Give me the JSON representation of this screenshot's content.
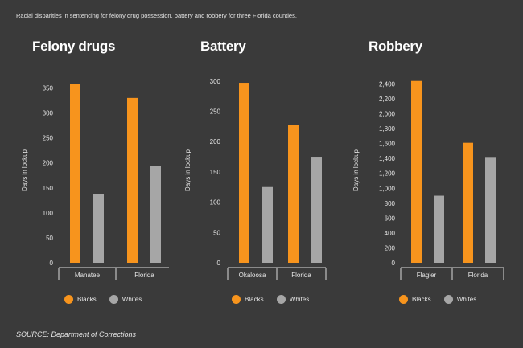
{
  "header": {
    "title": "Racial disparities in sentencing for felony drug possession, battery and robbery for three Florida counties."
  },
  "footer": {
    "source": "SOURCE: Department of Corrections"
  },
  "colors": {
    "blacks": "#f7941d",
    "whites": "#a6a6a6",
    "axis": "#d9d9d9",
    "text": "#e6e6e6"
  },
  "chart_data": [
    {
      "type": "bar",
      "title": "Felony drugs",
      "ylabel": "Days in lockup",
      "categories": [
        "Manatee",
        "Florida"
      ],
      "series": [
        {
          "name": "Blacks",
          "values": [
            358,
            330
          ]
        },
        {
          "name": "Whites",
          "values": [
            137,
            194
          ]
        }
      ],
      "ylim": [
        0,
        370
      ],
      "yticks": [
        0,
        50,
        100,
        150,
        200,
        250,
        300,
        350
      ],
      "ytick_labels": [
        "0",
        "50",
        "100",
        "150",
        "200",
        "250",
        "300",
        "350"
      ],
      "legend": [
        "Blacks",
        "Whites"
      ]
    },
    {
      "type": "bar",
      "title": "Battery",
      "ylabel": "Days in lockup",
      "categories": [
        "Okaloosa",
        "Florida"
      ],
      "series": [
        {
          "name": "Blacks",
          "values": [
            297,
            228
          ]
        },
        {
          "name": "Whites",
          "values": [
            125,
            175
          ]
        }
      ],
      "ylim": [
        0,
        305
      ],
      "yticks": [
        0,
        50,
        100,
        150,
        200,
        250,
        300
      ],
      "ytick_labels": [
        "0",
        "50",
        "100",
        "150",
        "200",
        "250",
        "300"
      ],
      "legend": [
        "Blacks",
        "Whites"
      ]
    },
    {
      "type": "bar",
      "title": "Robbery",
      "ylabel": "Days in lockup",
      "categories": [
        "Flagler",
        "Florida"
      ],
      "series": [
        {
          "name": "Blacks",
          "values": [
            2440,
            1610
          ]
        },
        {
          "name": "Whites",
          "values": [
            900,
            1420
          ]
        }
      ],
      "ylim": [
        0,
        2480
      ],
      "yticks": [
        0,
        200,
        400,
        600,
        800,
        1000,
        1200,
        1400,
        1600,
        1800,
        2000,
        2200,
        2400
      ],
      "ytick_labels": [
        "0",
        "200",
        "400",
        "600",
        "800",
        "1,000",
        "1,200",
        "1,400",
        "1,600",
        "1,800",
        "2,000",
        "2,200",
        "2,400"
      ],
      "legend": [
        "Blacks",
        "Whites"
      ]
    }
  ]
}
